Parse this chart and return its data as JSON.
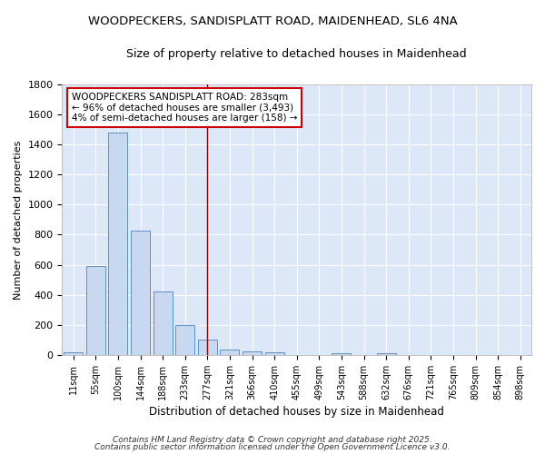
{
  "title_line1": "WOODPECKERS, SANDISPLATT ROAD, MAIDENHEAD, SL6 4NA",
  "title_line2": "Size of property relative to detached houses in Maidenhead",
  "xlabel": "Distribution of detached houses by size in Maidenhead",
  "ylabel": "Number of detached properties",
  "categories": [
    "11sqm",
    "55sqm",
    "100sqm",
    "144sqm",
    "188sqm",
    "233sqm",
    "277sqm",
    "321sqm",
    "366sqm",
    "410sqm",
    "455sqm",
    "499sqm",
    "543sqm",
    "588sqm",
    "632sqm",
    "676sqm",
    "721sqm",
    "765sqm",
    "809sqm",
    "854sqm",
    "898sqm"
  ],
  "values": [
    15,
    590,
    1480,
    825,
    420,
    200,
    100,
    35,
    25,
    15,
    0,
    0,
    10,
    0,
    10,
    0,
    0,
    0,
    0,
    0,
    0
  ],
  "bar_color": "#c8d8f0",
  "bar_edge_color": "#6090c0",
  "fig_background_color": "#ffffff",
  "ax_background_color": "#dce8f8",
  "grid_color": "#ffffff",
  "vline_x": 6,
  "vline_color": "#800000",
  "annotation_text": "WOODPECKERS SANDISPLATT ROAD: 283sqm\n← 96% of detached houses are smaller (3,493)\n4% of semi-detached houses are larger (158) →",
  "annotation_box_facecolor": "#ffffff",
  "annotation_box_edgecolor": "#cc0000",
  "footer_line1": "Contains HM Land Registry data © Crown copyright and database right 2025.",
  "footer_line2": "Contains public sector information licensed under the Open Government Licence v3.0.",
  "ylim": [
    0,
    1800
  ],
  "yticks": [
    0,
    200,
    400,
    600,
    800,
    1000,
    1200,
    1400,
    1600,
    1800
  ]
}
